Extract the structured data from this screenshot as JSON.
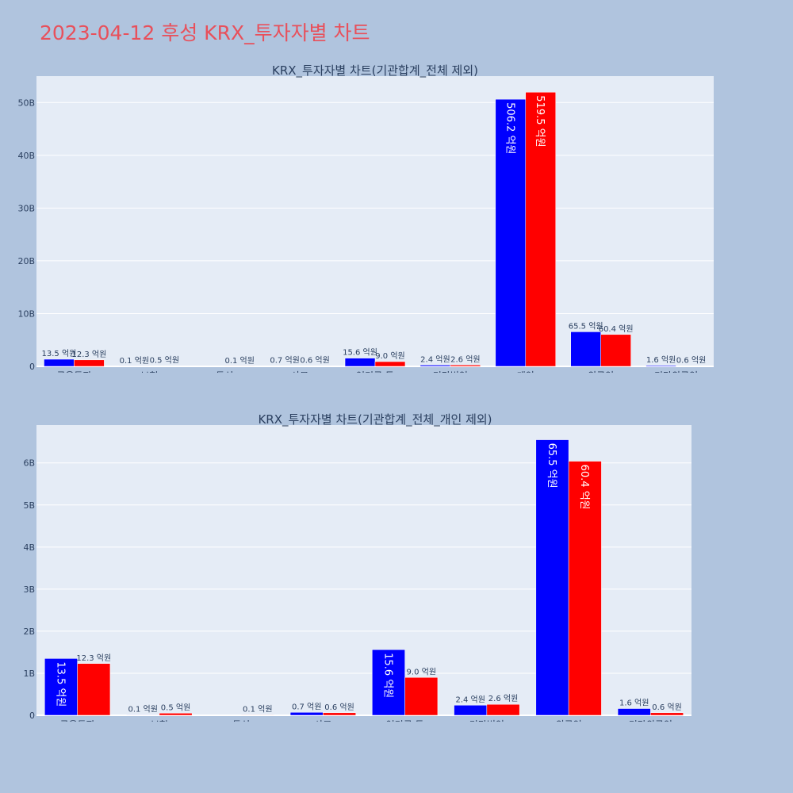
{
  "page": {
    "title": "2023-04-12 후성 KRX_투자자별 차트"
  },
  "colors": {
    "buy": "#0000ff",
    "sell": "#ff0000",
    "plot_bg": "#e5ecf6",
    "page_bg": "#b0c4de",
    "title": "#e8505b"
  },
  "chart_data": [
    {
      "type": "bar",
      "title": "KRX_투자자별 차트(기관합계_전체 제외)",
      "categories": [
        "금융투자",
        "보험",
        "투신",
        "사모",
        "연기금 등",
        "기타법인",
        "개인",
        "외국인",
        "기타외국인"
      ],
      "series": [
        {
          "values": [
            1350000000,
            10000000,
            0,
            70000000,
            1560000000,
            240000000,
            50620000000,
            6550000000,
            160000000
          ],
          "labels": [
            "13.5 억원",
            "0.1 억원",
            "",
            "0.7 억원",
            "15.6 억원",
            "2.4 억원",
            "506.2 억원",
            "65.5 억원",
            "1.6 억원"
          ]
        },
        {
          "values": [
            1230000000,
            50000000,
            10000000,
            60000000,
            900000000,
            260000000,
            51950000000,
            6040000000,
            60000000
          ],
          "labels": [
            "12.3 억원",
            "0.5 억원",
            "0.1 억원",
            "0.6 억원",
            "9.0 억원",
            "2.6 억원",
            "519.5 억원",
            "60.4 억원",
            "0.6 억원"
          ]
        }
      ],
      "ylim": [
        0,
        55000000000
      ],
      "yticks": [
        0,
        10000000000,
        20000000000,
        30000000000,
        40000000000,
        50000000000
      ],
      "ytick_labels": [
        "0",
        "10B",
        "20B",
        "30B",
        "40B",
        "50B"
      ],
      "grid": true
    },
    {
      "type": "bar",
      "title": "KRX_투자자별 차트(기관합계_전체_개인 제외)",
      "categories": [
        "금융투자",
        "보험",
        "투신",
        "사모",
        "연기금 등",
        "기타법인",
        "외국인",
        "기타외국인"
      ],
      "series": [
        {
          "values": [
            1350000000,
            10000000,
            0,
            70000000,
            1560000000,
            240000000,
            6550000000,
            160000000
          ],
          "labels": [
            "13.5 억원",
            "0.1 억원",
            "",
            "0.7 억원",
            "15.6 억원",
            "2.4 억원",
            "65.5 억원",
            "1.6 억원"
          ]
        },
        {
          "values": [
            1230000000,
            50000000,
            10000000,
            60000000,
            900000000,
            260000000,
            6040000000,
            60000000
          ],
          "labels": [
            "12.3 억원",
            "0.5 억원",
            "0.1 억원",
            "0.6 억원",
            "9.0 억원",
            "2.6 억원",
            "60.4 억원",
            "0.6 억원"
          ]
        }
      ],
      "ylim": [
        0,
        6900000000
      ],
      "yticks": [
        0,
        1000000000,
        2000000000,
        3000000000,
        4000000000,
        5000000000,
        6000000000
      ],
      "ytick_labels": [
        "0",
        "1B",
        "2B",
        "3B",
        "4B",
        "5B",
        "6B"
      ],
      "grid": true
    }
  ]
}
